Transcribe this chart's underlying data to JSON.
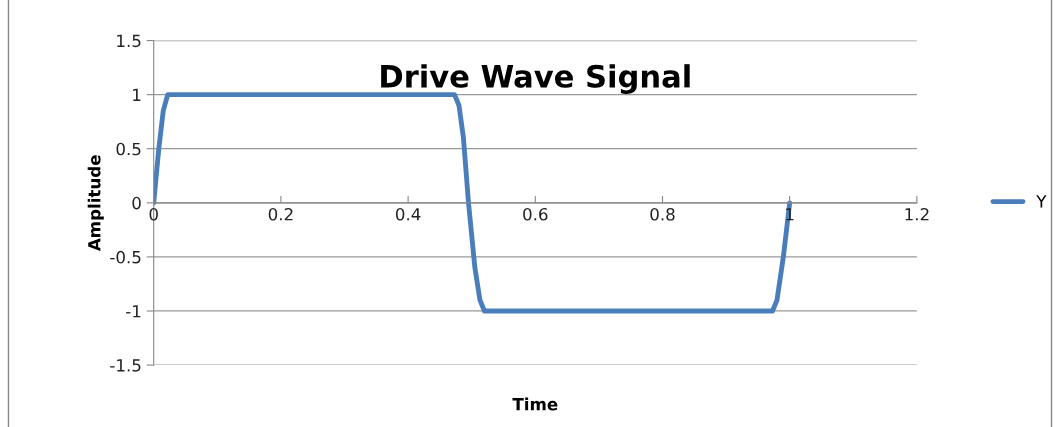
{
  "chart_data": {
    "type": "line",
    "title": "Drive Wave Signal",
    "xlabel": "Time",
    "ylabel": "Amplitude",
    "series": [
      {
        "name": "Y",
        "color": "#4a7ebb",
        "x": [
          0,
          0.008,
          0.015,
          0.022,
          0.473,
          0.48,
          0.487,
          0.495,
          0.505,
          0.513,
          0.52,
          0.973,
          0.98,
          0.99,
          1.0
        ],
        "values": [
          0,
          0.5,
          0.85,
          1,
          1,
          0.9,
          0.6,
          0,
          -0.6,
          -0.9,
          -1,
          -1,
          -0.9,
          -0.5,
          0
        ]
      }
    ],
    "xlim": [
      0,
      1.2
    ],
    "xticks": [
      0,
      0.2,
      0.4,
      0.6,
      0.8,
      1,
      1.2
    ],
    "ylim": [
      -1.5,
      1.5
    ],
    "yticks": [
      -1.5,
      -1,
      -0.5,
      0,
      0.5,
      1,
      1.5
    ],
    "grid": "y",
    "legend": "right",
    "marker": "none",
    "line_style": "solid"
  }
}
